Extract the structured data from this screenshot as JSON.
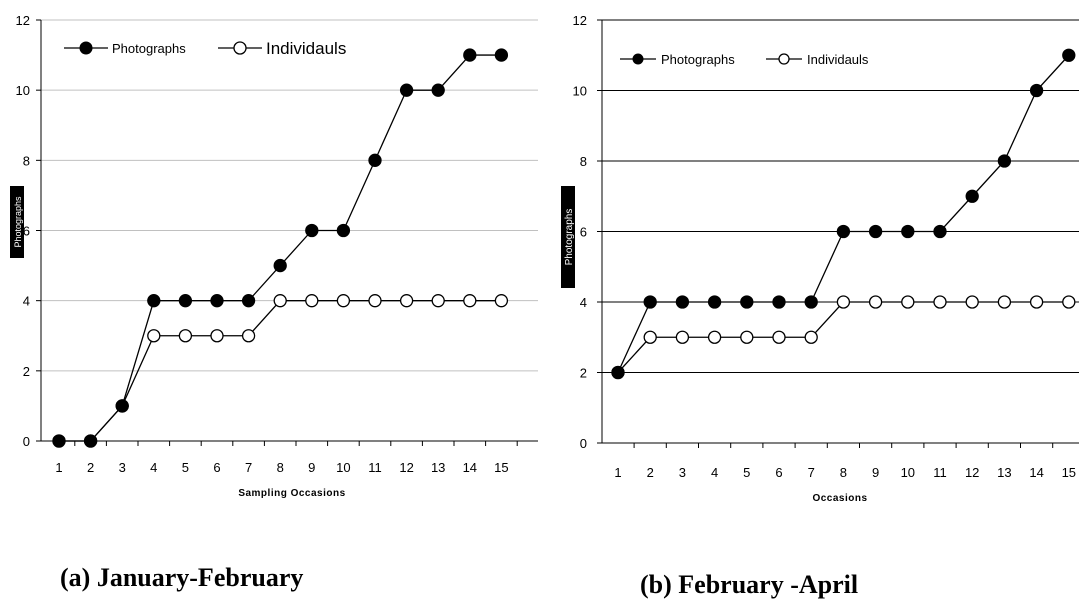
{
  "chart_data": [
    {
      "type": "line",
      "x": [
        1,
        2,
        3,
        4,
        5,
        6,
        7,
        8,
        9,
        10,
        11,
        12,
        13,
        14,
        15
      ],
      "series": [
        {
          "name": "Photographs",
          "values": [
            0,
            0,
            1,
            4,
            4,
            4,
            4,
            5,
            6,
            6,
            8,
            10,
            10,
            11,
            11
          ],
          "marker": "filled-circle",
          "color": "#000000"
        },
        {
          "name": "Individauls",
          "values": [
            0,
            0,
            1,
            3,
            3,
            3,
            3,
            4,
            4,
            4,
            4,
            4,
            4,
            4,
            4
          ],
          "marker": "open-circle",
          "color": "#000000"
        }
      ],
      "xlabel": "Sampling Occasions",
      "ylabel": "Photographs",
      "ylim": [
        0,
        12
      ],
      "yticks": [
        0,
        2,
        4,
        6,
        8,
        10,
        12
      ],
      "grid": true,
      "grid_color": "#c0c0c0",
      "legend": "top-left",
      "caption": "(a) January-February"
    },
    {
      "type": "line",
      "x": [
        1,
        2,
        3,
        4,
        5,
        6,
        7,
        8,
        9,
        10,
        11,
        12,
        13,
        14,
        15
      ],
      "series": [
        {
          "name": "Photographs",
          "values": [
            2,
            4,
            4,
            4,
            4,
            4,
            4,
            6,
            6,
            6,
            6,
            7,
            8,
            10,
            11
          ],
          "marker": "filled-circle",
          "color": "#000000"
        },
        {
          "name": "Individauls",
          "values": [
            2,
            3,
            3,
            3,
            3,
            3,
            3,
            4,
            4,
            4,
            4,
            4,
            4,
            4,
            4
          ],
          "marker": "open-circle",
          "color": "#000000"
        }
      ],
      "xlabel": "Occasions",
      "ylabel": "Photographs",
      "ylim": [
        0,
        12
      ],
      "yticks": [
        0,
        2,
        4,
        6,
        8,
        10,
        12
      ],
      "grid": true,
      "grid_color": "#000000",
      "legend": "top-left",
      "caption": "(b) February -April"
    }
  ]
}
